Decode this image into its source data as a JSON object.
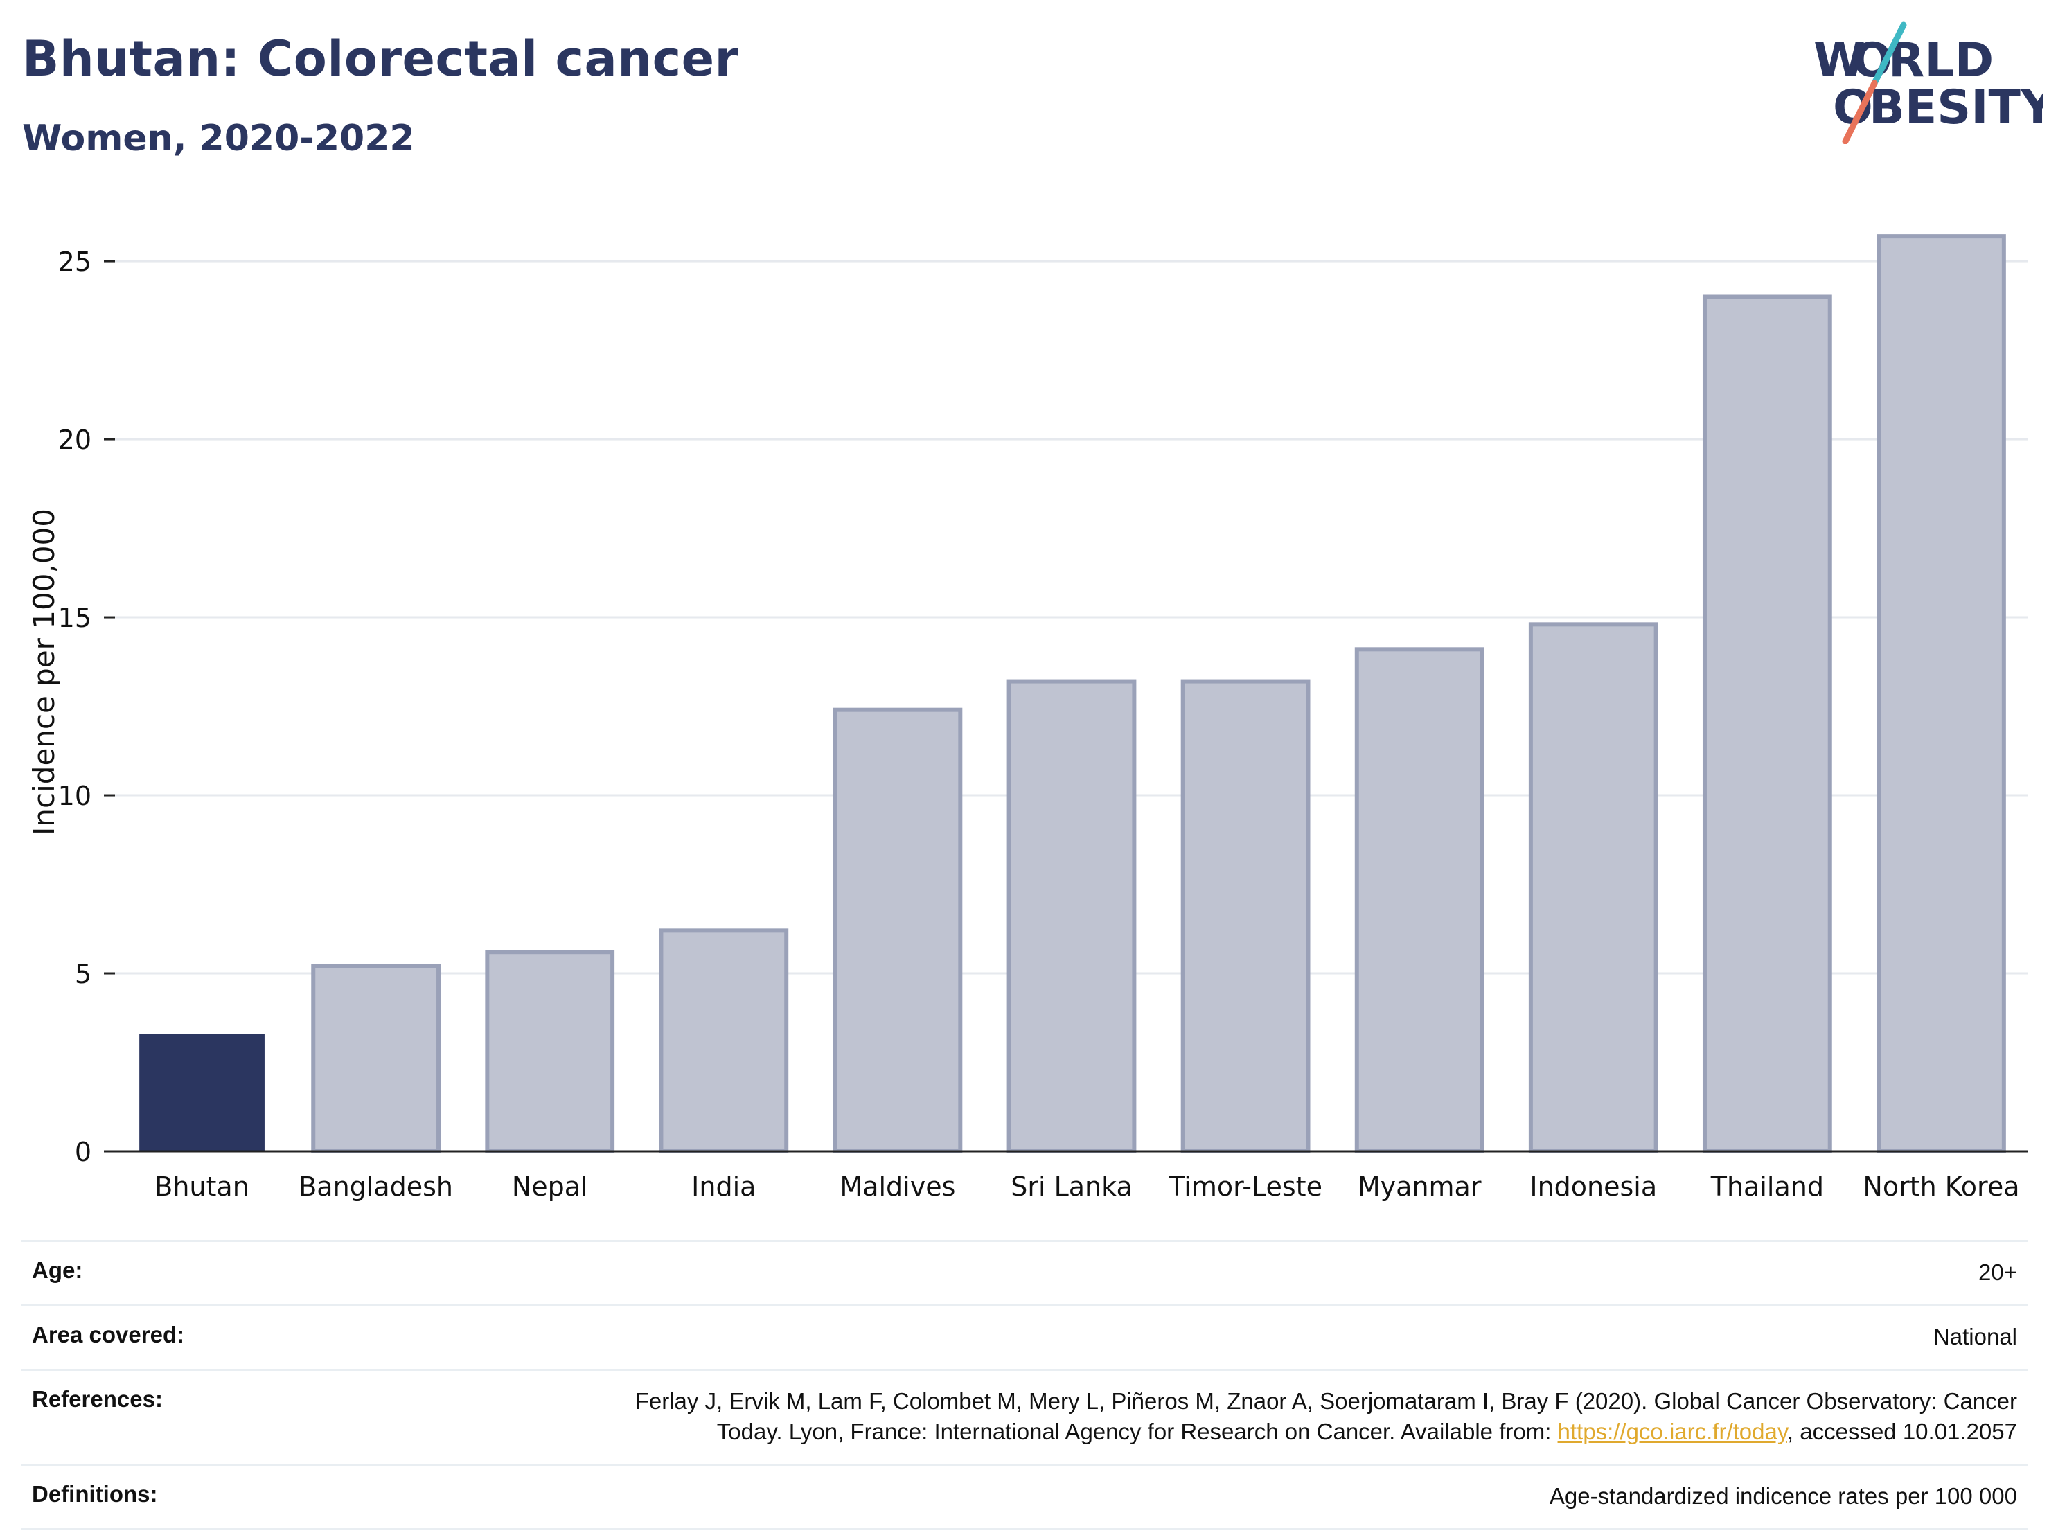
{
  "header": {
    "title": "Bhutan: Colorectal cancer",
    "subtitle": "Women, 2020-2022"
  },
  "logo": {
    "line1_a": "W",
    "line1_o": "O",
    "line1_b": "RLD",
    "line2_o": "O",
    "line2_b": "BESITY",
    "text_color": "#2b3660",
    "accent_teal": "#3fb8c4",
    "accent_coral": "#e8735a"
  },
  "chart_data": {
    "type": "bar",
    "title": "",
    "xlabel": "",
    "ylabel": "Incidence per 100,000",
    "categories": [
      "Bhutan",
      "Bangladesh",
      "Nepal",
      "India",
      "Maldives",
      "Sri Lanka",
      "Timor-Leste",
      "Myanmar",
      "Indonesia",
      "Thailand",
      "North Korea"
    ],
    "values": [
      3.3,
      5.2,
      5.6,
      6.2,
      12.4,
      13.2,
      13.2,
      14.1,
      14.8,
      24.0,
      25.7
    ],
    "highlight": "Bhutan",
    "ylim": [
      0,
      26.5
    ],
    "yticks": [
      0,
      5,
      10,
      15,
      20,
      25
    ],
    "grid": true,
    "colors": {
      "highlight": "#2b3660",
      "bar_fill": "#bfc3d1",
      "bar_stroke": "#9aa1b8",
      "grid": "#e6e9ee",
      "axis": "#222222",
      "tick_text": "#111111"
    }
  },
  "meta": {
    "age": {
      "label": "Age:",
      "value": "20+"
    },
    "area": {
      "label": "Area covered:",
      "value": "National"
    },
    "references": {
      "label": "References:",
      "value_line1": "Ferlay J, Ervik M, Lam F, Colombet M, Mery L, Piñeros M, Znaor A, Soerjomataram I, Bray F (2020). Global Cancer Observatory: Cancer",
      "value_line2_pre": "Today. Lyon, France: International Agency for Research on Cancer. Available from: ",
      "link": "https://gco.iarc.fr/today",
      "value_line2_post": ", accessed 10.01.2057"
    },
    "definitions": {
      "label": "Definitions:",
      "value": "Age-standardized indicence rates per 100 000"
    }
  }
}
